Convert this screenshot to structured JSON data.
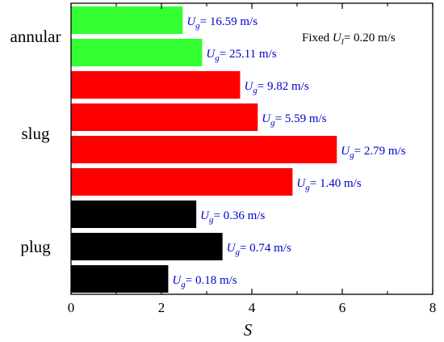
{
  "chart_data": {
    "type": "bar",
    "orientation": "horizontal",
    "xlabel": "S",
    "xlim": [
      0,
      8
    ],
    "xticks": [
      "0",
      "2",
      "4",
      "6",
      "8"
    ],
    "grid": false,
    "groups": [
      {
        "label": "annular",
        "bars": [
          0,
          1
        ]
      },
      {
        "label": "slug",
        "bars": [
          2,
          3,
          4,
          5
        ]
      },
      {
        "label": "plug",
        "bars": [
          6,
          7,
          8
        ]
      }
    ],
    "bars": [
      {
        "value": 2.47,
        "color": "#33ff33",
        "label_symbol": "U",
        "label_sub": "g",
        "label_text": "= 16.59 m/s"
      },
      {
        "value": 2.9,
        "color": "#33ff33",
        "label_symbol": "U",
        "label_sub": "g",
        "label_text": "= 25.11 m/s"
      },
      {
        "value": 3.74,
        "color": "#ff0000",
        "label_symbol": "U",
        "label_sub": "g",
        "label_text": "= 9.82 m/s"
      },
      {
        "value": 4.13,
        "color": "#ff0000",
        "label_symbol": "U",
        "label_sub": "g",
        "label_text": "= 5.59 m/s"
      },
      {
        "value": 5.88,
        "color": "#ff0000",
        "label_symbol": "U",
        "label_sub": "g",
        "label_text": "= 2.79 m/s"
      },
      {
        "value": 4.9,
        "color": "#ff0000",
        "label_symbol": "U",
        "label_sub": "g",
        "label_text": "= 1.40 m/s"
      },
      {
        "value": 2.77,
        "color": "#000000",
        "label_symbol": "U",
        "label_sub": "g",
        "label_text": "= 0.36 m/s"
      },
      {
        "value": 3.35,
        "color": "#000000",
        "label_symbol": "U",
        "label_sub": "g",
        "label_text": "= 0.74 m/s"
      },
      {
        "value": 2.15,
        "color": "#000000",
        "label_symbol": "U",
        "label_sub": "g",
        "label_text": "= 0.18 m/s"
      }
    ],
    "annotation": {
      "prefix": "Fixed ",
      "symbol": "U",
      "sub": "l",
      "text": "= 0.20 m/s"
    },
    "label_color": "#0000cc",
    "axis_color": "#000000"
  }
}
